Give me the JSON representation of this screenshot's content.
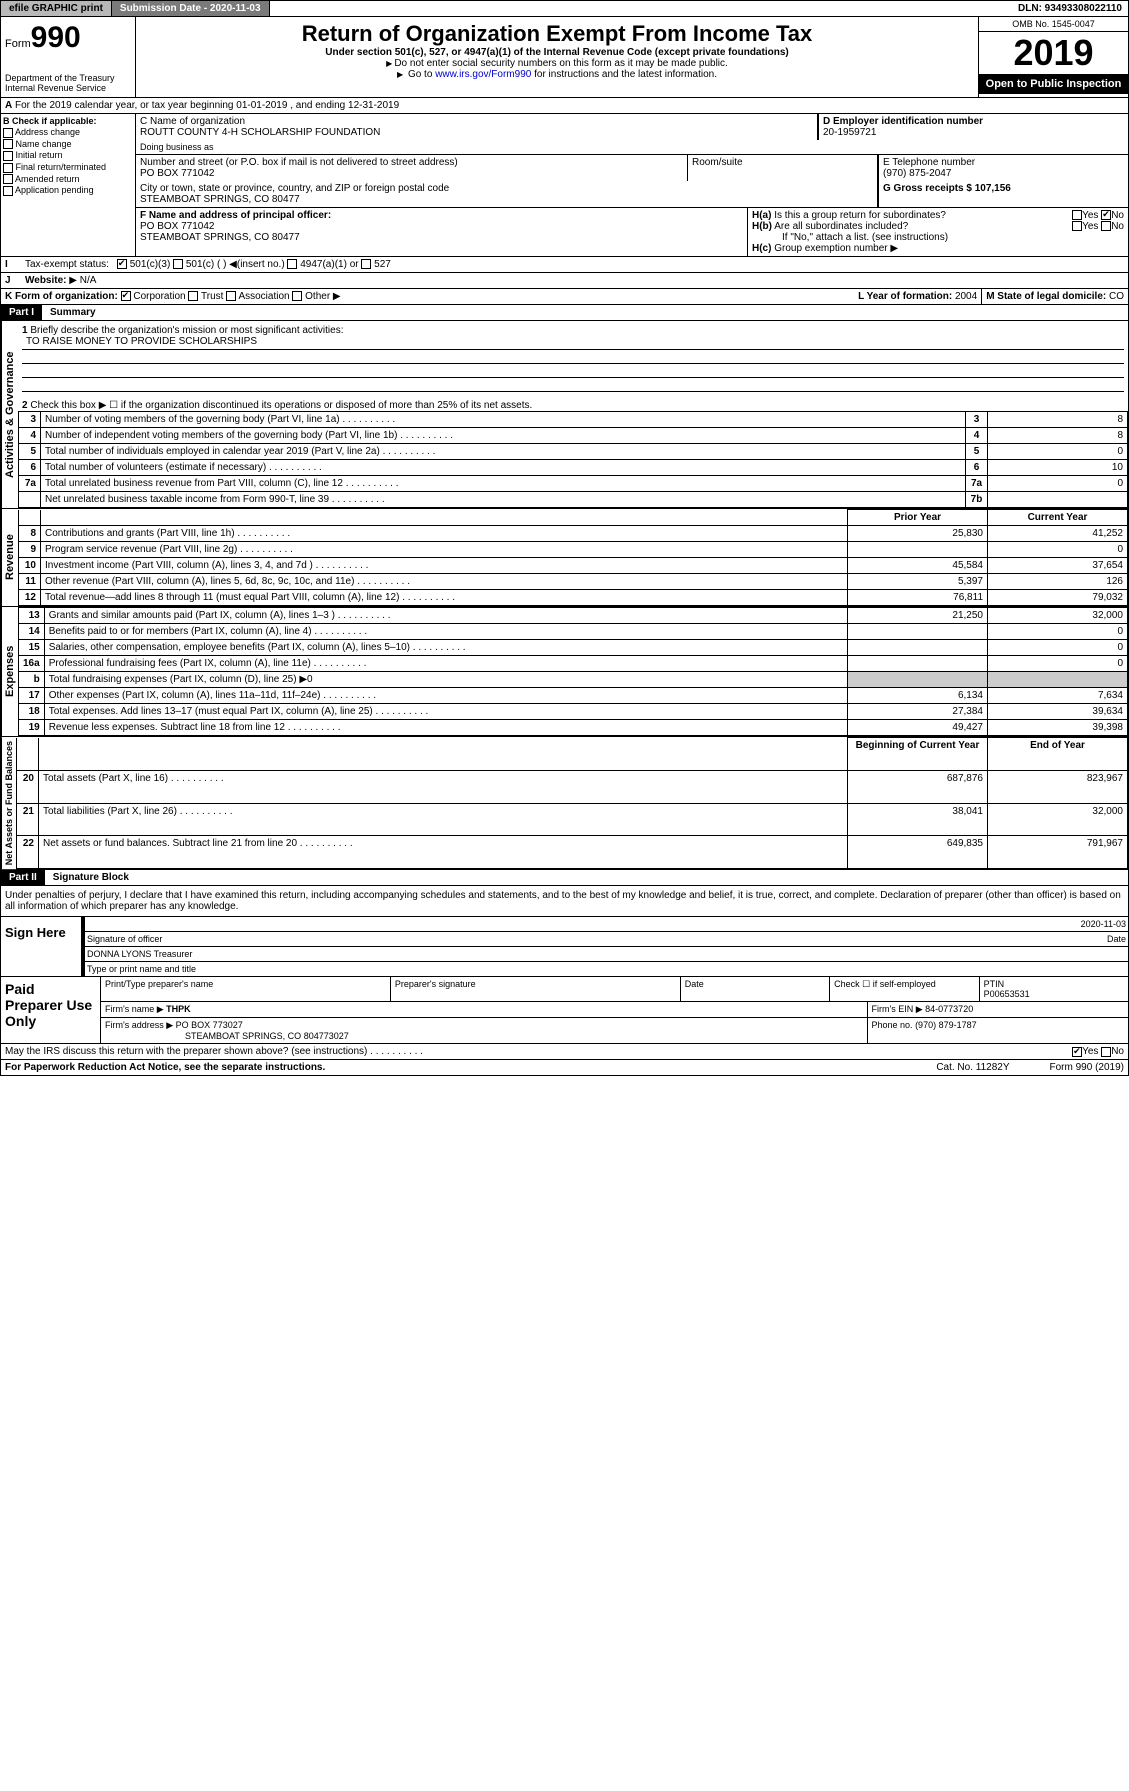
{
  "top": {
    "efile": "efile GRAPHIC print",
    "submission": "Submission Date - 2020-11-03",
    "dln": "DLN: 93493308022110"
  },
  "header": {
    "form": "Form",
    "formNum": "990",
    "dept": "Department of the Treasury\nInternal Revenue Service",
    "title": "Return of Organization Exempt From Income Tax",
    "sub": "Under section 501(c), 527, or 4947(a)(1) of the Internal Revenue Code (except private foundations)",
    "note1": "Do not enter social security numbers on this form as it may be made public.",
    "note2a": "Go to ",
    "note2link": "www.irs.gov/Form990",
    "note2b": " for instructions and the latest information.",
    "omb": "OMB No. 1545-0047",
    "year": "2019",
    "inspect": "Open to Public Inspection"
  },
  "rowA": "For the 2019 calendar year, or tax year beginning 01-01-2019  , and ending 12-31-2019",
  "colB": {
    "hdr": "B Check if applicable:",
    "items": [
      "Address change",
      "Name change",
      "Initial return",
      "Final return/terminated",
      "Amended return",
      "Application pending"
    ]
  },
  "c": {
    "nameLabel": "C Name of organization",
    "name": "ROUTT COUNTY 4-H SCHOLARSHIP FOUNDATION",
    "dba": "Doing business as",
    "addrLabel": "Number and street (or P.O. box if mail is not delivered to street address)",
    "room": "Room/suite",
    "addr": "PO BOX 771042",
    "cityLabel": "City or town, state or province, country, and ZIP or foreign postal code",
    "city": "STEAMBOAT SPRINGS, CO  80477"
  },
  "d": {
    "label": "D Employer identification number",
    "val": "20-1959721"
  },
  "e": {
    "label": "E Telephone number",
    "val": "(970) 875-2047"
  },
  "g": {
    "label": "G Gross receipts $",
    "val": "107,156"
  },
  "f": {
    "label": "F Name and address of principal officer:",
    "addr1": "PO BOX 771042",
    "addr2": "STEAMBOAT SPRINGS, CO  80477"
  },
  "h": {
    "a": "Is this a group return for subordinates?",
    "b": "Are all subordinates included?",
    "note": "If \"No,\" attach a list. (see instructions)",
    "c": "Group exemption number"
  },
  "i": {
    "label": "Tax-exempt status:",
    "opt1": "501(c)(3)",
    "opt2": "501(c) (  )",
    "insert": "(insert no.)",
    "opt3": "4947(a)(1) or",
    "opt4": "527"
  },
  "j": {
    "label": "Website:",
    "val": "N/A"
  },
  "k": {
    "label": "K Form of organization:",
    "opts": [
      "Corporation",
      "Trust",
      "Association",
      "Other"
    ]
  },
  "l": {
    "label": "L Year of formation:",
    "val": "2004"
  },
  "m": {
    "label": "M State of legal domicile:",
    "val": "CO"
  },
  "part1": {
    "hdr": "Part I",
    "title": "Summary",
    "q1": "Briefly describe the organization's mission or most significant activities:",
    "mission": "TO RAISE MONEY TO PROVIDE SCHOLARSHIPS",
    "q2": "Check this box ▶ ☐  if the organization discontinued its operations or disposed of more than 25% of its net assets.",
    "sections": {
      "gov": "Activities & Governance",
      "rev": "Revenue",
      "exp": "Expenses",
      "net": "Net Assets or Fund Balances"
    },
    "colHdrs": {
      "prior": "Prior Year",
      "current": "Current Year",
      "begin": "Beginning of Current Year",
      "end": "End of Year"
    },
    "rows": [
      {
        "n": "3",
        "t": "Number of voting members of the governing body (Part VI, line 1a)",
        "ln": "3",
        "cur": "8"
      },
      {
        "n": "4",
        "t": "Number of independent voting members of the governing body (Part VI, line 1b)",
        "ln": "4",
        "cur": "8"
      },
      {
        "n": "5",
        "t": "Total number of individuals employed in calendar year 2019 (Part V, line 2a)",
        "ln": "5",
        "cur": "0"
      },
      {
        "n": "6",
        "t": "Total number of volunteers (estimate if necessary)",
        "ln": "6",
        "cur": "10"
      },
      {
        "n": "7a",
        "t": "Total unrelated business revenue from Part VIII, column (C), line 12",
        "ln": "7a",
        "cur": "0"
      },
      {
        "n": "",
        "t": "Net unrelated business taxable income from Form 990-T, line 39",
        "ln": "7b",
        "cur": ""
      }
    ],
    "revRows": [
      {
        "n": "8",
        "t": "Contributions and grants (Part VIII, line 1h)",
        "p": "25,830",
        "c": "41,252"
      },
      {
        "n": "9",
        "t": "Program service revenue (Part VIII, line 2g)",
        "p": "",
        "c": "0"
      },
      {
        "n": "10",
        "t": "Investment income (Part VIII, column (A), lines 3, 4, and 7d )",
        "p": "45,584",
        "c": "37,654"
      },
      {
        "n": "11",
        "t": "Other revenue (Part VIII, column (A), lines 5, 6d, 8c, 9c, 10c, and 11e)",
        "p": "5,397",
        "c": "126"
      },
      {
        "n": "12",
        "t": "Total revenue—add lines 8 through 11 (must equal Part VIII, column (A), line 12)",
        "p": "76,811",
        "c": "79,032"
      }
    ],
    "expRows": [
      {
        "n": "13",
        "t": "Grants and similar amounts paid (Part IX, column (A), lines 1–3 )",
        "p": "21,250",
        "c": "32,000"
      },
      {
        "n": "14",
        "t": "Benefits paid to or for members (Part IX, column (A), line 4)",
        "p": "",
        "c": "0"
      },
      {
        "n": "15",
        "t": "Salaries, other compensation, employee benefits (Part IX, column (A), lines 5–10)",
        "p": "",
        "c": "0"
      },
      {
        "n": "16a",
        "t": "Professional fundraising fees (Part IX, column (A), line 11e)",
        "p": "",
        "c": "0"
      },
      {
        "n": "b",
        "t": "Total fundraising expenses (Part IX, column (D), line 25) ▶0",
        "p": "",
        "c": "",
        "span": true
      },
      {
        "n": "17",
        "t": "Other expenses (Part IX, column (A), lines 11a–11d, 11f–24e)",
        "p": "6,134",
        "c": "7,634"
      },
      {
        "n": "18",
        "t": "Total expenses. Add lines 13–17 (must equal Part IX, column (A), line 25)",
        "p": "27,384",
        "c": "39,634"
      },
      {
        "n": "19",
        "t": "Revenue less expenses. Subtract line 18 from line 12",
        "p": "49,427",
        "c": "39,398"
      }
    ],
    "netRows": [
      {
        "n": "20",
        "t": "Total assets (Part X, line 16)",
        "p": "687,876",
        "c": "823,967"
      },
      {
        "n": "21",
        "t": "Total liabilities (Part X, line 26)",
        "p": "38,041",
        "c": "32,000"
      },
      {
        "n": "22",
        "t": "Net assets or fund balances. Subtract line 21 from line 20",
        "p": "649,835",
        "c": "791,967"
      }
    ]
  },
  "part2": {
    "hdr": "Part II",
    "title": "Signature Block",
    "decl": "Under penalties of perjury, I declare that I have examined this return, including accompanying schedules and statements, and to the best of my knowledge and belief, it is true, correct, and complete. Declaration of preparer (other than officer) is based on all information of which preparer has any knowledge.",
    "signHere": "Sign Here",
    "sigOfficer": "Signature of officer",
    "date": "Date",
    "dateVal": "2020-11-03",
    "name": "DONNA LYONS Treasurer",
    "typeLabel": "Type or print name and title"
  },
  "paid": {
    "hdr": "Paid Preparer Use Only",
    "prepName": "Print/Type preparer's name",
    "prepSig": "Preparer's signature",
    "dateLbl": "Date",
    "checkSelf": "Check ☐ if self-employed",
    "ptin": "PTIN",
    "ptinVal": "P00653531",
    "firmName": "Firm's name   ▶",
    "firmNameVal": "THPK",
    "firmEin": "Firm's EIN ▶",
    "firmEinVal": "84-0773720",
    "firmAddr": "Firm's address ▶",
    "firmAddrVal": "PO BOX 773027",
    "firmCity": "STEAMBOAT SPRINGS, CO  804773027",
    "phone": "Phone no.",
    "phoneVal": "(970) 879-1787"
  },
  "footer": {
    "discuss": "May the IRS discuss this return with the preparer shown above? (see instructions)",
    "paperwork": "For Paperwork Reduction Act Notice, see the separate instructions.",
    "cat": "Cat. No. 11282Y",
    "form": "Form 990 (2019)"
  }
}
